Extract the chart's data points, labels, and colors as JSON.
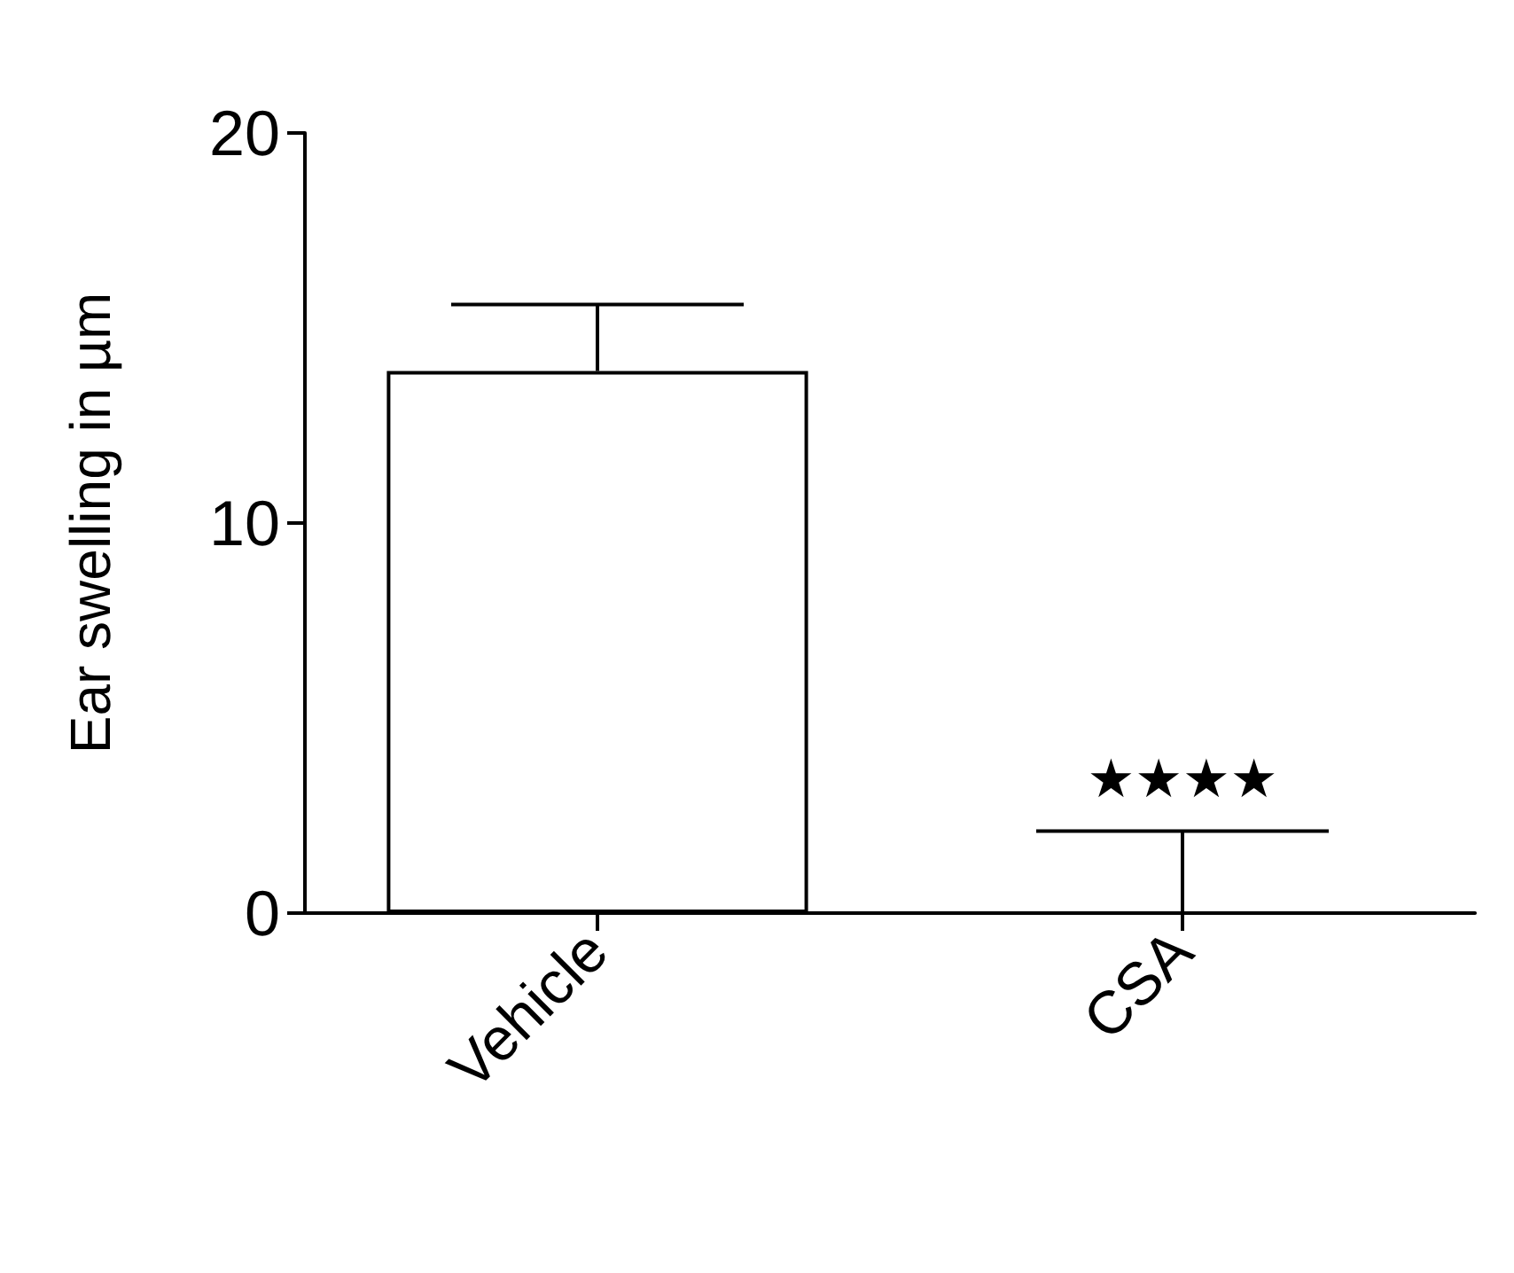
{
  "chart_data": {
    "type": "bar",
    "ylabel": "Ear swelling in µm",
    "categories": [
      "Vehicle",
      "CSA"
    ],
    "values": [
      13.9,
      0
    ],
    "errors": [
      1.7,
      2.1
    ],
    "color": "#ffffff",
    "ylim": [
      0,
      20
    ],
    "yticks": [
      0,
      10,
      20
    ],
    "grid": false,
    "annotations": [
      "★★★★"
    ]
  }
}
